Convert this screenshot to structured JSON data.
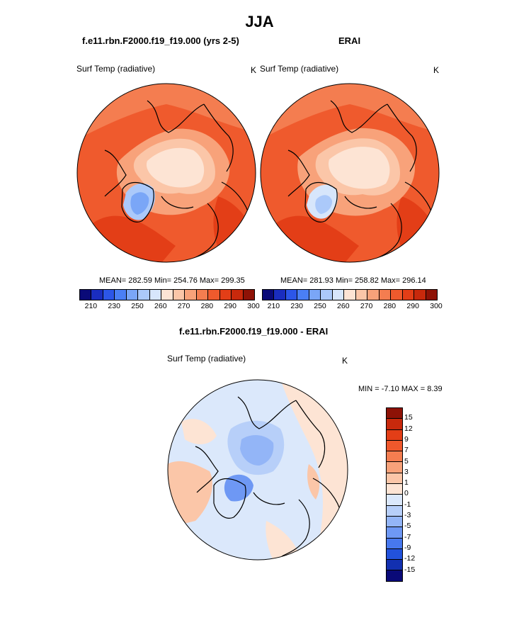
{
  "title": "JJA",
  "panels": [
    {
      "header": "f.e11.rbn.F2000.f19_f19.000 (yrs 2-5)",
      "variable": "Surf Temp (radiative)",
      "units": "K",
      "stats": "MEAN= 282.59  Min= 254.76  Max= 299.35"
    },
    {
      "header": "ERAI",
      "variable": "Surf Temp (radiative)",
      "units": "K",
      "stats": "MEAN= 281.93  Min= 258.82  Max= 296.14"
    }
  ],
  "abs_colorbar": {
    "colors": [
      "#0a0a78",
      "#1a2dbf",
      "#2c56e8",
      "#4a7ff5",
      "#7aa6f7",
      "#abc9fa",
      "#d7e6fb",
      "#fde4d4",
      "#fbc6a8",
      "#f8a27a",
      "#f47d50",
      "#ef5a2d",
      "#e33e17",
      "#c8290c",
      "#8e1206"
    ],
    "ticks": [
      "210",
      "230",
      "250",
      "260",
      "270",
      "280",
      "290",
      "300"
    ]
  },
  "diff_panel": {
    "header": "f.e11.rbn.F2000.f19_f19.000 - ERAI",
    "variable": "Surf Temp (radiative)",
    "units": "K",
    "stats": "MIN =  -7.10 MAX =   8.39"
  },
  "diff_colorbar": {
    "colors": [
      "#8e1206",
      "#c8290c",
      "#e33e17",
      "#f0582c",
      "#f47d50",
      "#f8a27a",
      "#fbc6a8",
      "#fde4d4",
      "#dbe8fb",
      "#b7cff9",
      "#93b5f7",
      "#6e98f4",
      "#4778ee",
      "#2252dc",
      "#1230b0",
      "#0a0a78"
    ],
    "ticks": [
      "15",
      "12",
      "9",
      "7",
      "5",
      "3",
      "1",
      "0",
      "-1",
      "-3",
      "-5",
      "-7",
      "-9",
      "-12",
      "-15"
    ]
  }
}
